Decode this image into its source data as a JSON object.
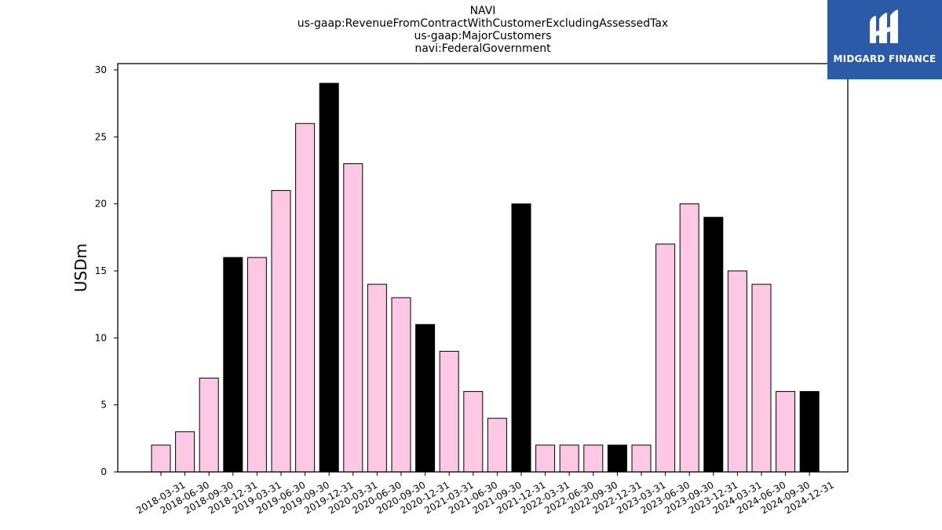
{
  "titles": [
    "NAVI",
    "us-gaap:RevenueFromContractWithCustomerExcludingAssessedTax",
    "us-gaap:MajorCustomers",
    "navi:FederalGovernment"
  ],
  "logo": {
    "text": "MIDGARD FINANCE",
    "icon": "midgard-logo-icon",
    "background": "#2b5aa8"
  },
  "colors": {
    "bar_default": "#fcc8e4",
    "bar_highlight": "#000000",
    "bar_edge": "#000000"
  },
  "chart_data": {
    "type": "bar",
    "categories": [
      "2018-03-31",
      "2018-06-30",
      "2018-09-30",
      "2018-12-31",
      "2019-03-31",
      "2019-06-30",
      "2019-09-30",
      "2019-12-31",
      "2020-03-31",
      "2020-06-30",
      "2020-09-30",
      "2020-12-31",
      "2021-03-31",
      "2021-06-30",
      "2021-09-30",
      "2021-12-31",
      "2022-03-31",
      "2022-06-30",
      "2022-09-30",
      "2022-12-31",
      "2023-03-31",
      "2023-06-30",
      "2023-09-30",
      "2023-12-31",
      "2024-03-31",
      "2024-06-30",
      "2024-09-30",
      "2024-12-31"
    ],
    "values": [
      2,
      3,
      7,
      16,
      16,
      21,
      26,
      29,
      23,
      14,
      13,
      11,
      9,
      6,
      4,
      20,
      2,
      2,
      2,
      2,
      2,
      17,
      20,
      19,
      15,
      14,
      6,
      6
    ],
    "highlight": [
      false,
      false,
      false,
      true,
      false,
      false,
      false,
      true,
      false,
      false,
      false,
      true,
      false,
      false,
      false,
      true,
      false,
      false,
      false,
      true,
      false,
      false,
      false,
      true,
      false,
      false,
      false,
      true
    ],
    "ylabel": "USDm",
    "xlabel": "",
    "ylim": [
      0,
      30
    ],
    "yticks": [
      0,
      5,
      10,
      15,
      20,
      25,
      30
    ],
    "grid": false
  }
}
